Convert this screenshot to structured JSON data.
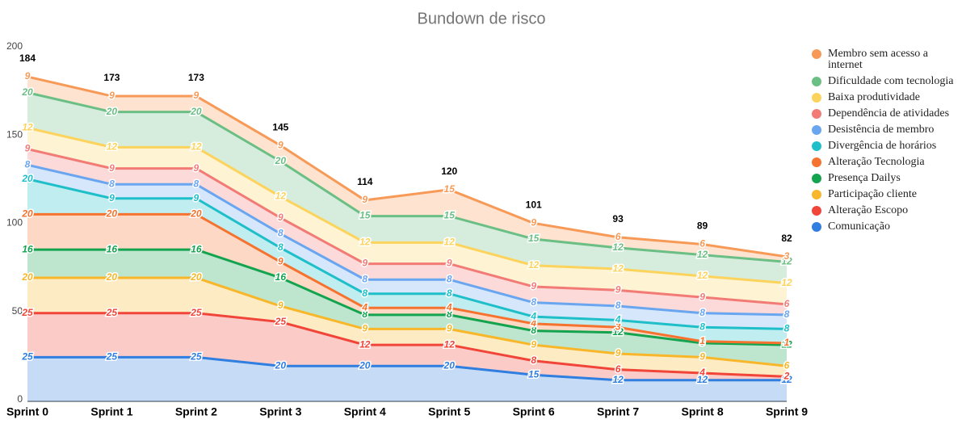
{
  "chart_data": {
    "type": "stacked_area",
    "title": "Bundown de risco",
    "categories": [
      "Sprint 0",
      "Sprint 1",
      "Sprint 2",
      "Sprint 3",
      "Sprint 4",
      "Sprint 5",
      "Sprint 6",
      "Sprint 7",
      "Sprint 8",
      "Sprint 9"
    ],
    "series": [
      {
        "name": "Comunicação",
        "color": "#2f7ee0",
        "values": [
          25,
          25,
          25,
          20,
          20,
          20,
          15,
          12,
          12,
          12
        ]
      },
      {
        "name": "Alteração Escopo",
        "color": "#f04538",
        "values": [
          25,
          25,
          25,
          25,
          12,
          12,
          8,
          6,
          4,
          2
        ]
      },
      {
        "name": "Participação cliente",
        "color": "#f8b72a",
        "values": [
          20,
          20,
          20,
          9,
          9,
          9,
          9,
          9,
          9,
          6
        ]
      },
      {
        "name": "Presença Dailys",
        "color": "#14a34e",
        "values": [
          16,
          16,
          16,
          16,
          8,
          8,
          8,
          12,
          8,
          12
        ]
      },
      {
        "name": "Alteração Tecnologia",
        "color": "#f5732e",
        "values": [
          20,
          20,
          20,
          9,
          4,
          4,
          4,
          3,
          1,
          1
        ]
      },
      {
        "name": "Divergência de horários",
        "color": "#1ebfc9",
        "values": [
          20,
          9,
          9,
          8,
          8,
          8,
          4,
          4,
          8,
          8
        ]
      },
      {
        "name": "Desistência de membro",
        "color": "#6aa6f0",
        "values": [
          8,
          8,
          8,
          8,
          8,
          8,
          8,
          8,
          8,
          8
        ]
      },
      {
        "name": "Dependência de atividades",
        "color": "#f27b76",
        "values": [
          9,
          9,
          9,
          9,
          9,
          9,
          9,
          9,
          9,
          6
        ]
      },
      {
        "name": "Baixa produtividade",
        "color": "#fcd35c",
        "values": [
          12,
          12,
          12,
          12,
          12,
          12,
          12,
          12,
          12,
          12
        ]
      },
      {
        "name": "Dificuldade com tecnologia",
        "color": "#6cbf84",
        "values": [
          20,
          20,
          20,
          20,
          15,
          15,
          15,
          12,
          12,
          12
        ]
      },
      {
        "name": "Membro sem acesso a internet",
        "color": "#f79a57",
        "values": [
          9,
          9,
          9,
          9,
          9,
          15,
          9,
          6,
          6,
          3
        ]
      }
    ],
    "totals": [
      184,
      173,
      173,
      145,
      114,
      120,
      101,
      93,
      89,
      82
    ],
    "ylim": [
      0,
      200
    ],
    "yticks": [
      0,
      50,
      100,
      150,
      200
    ]
  }
}
